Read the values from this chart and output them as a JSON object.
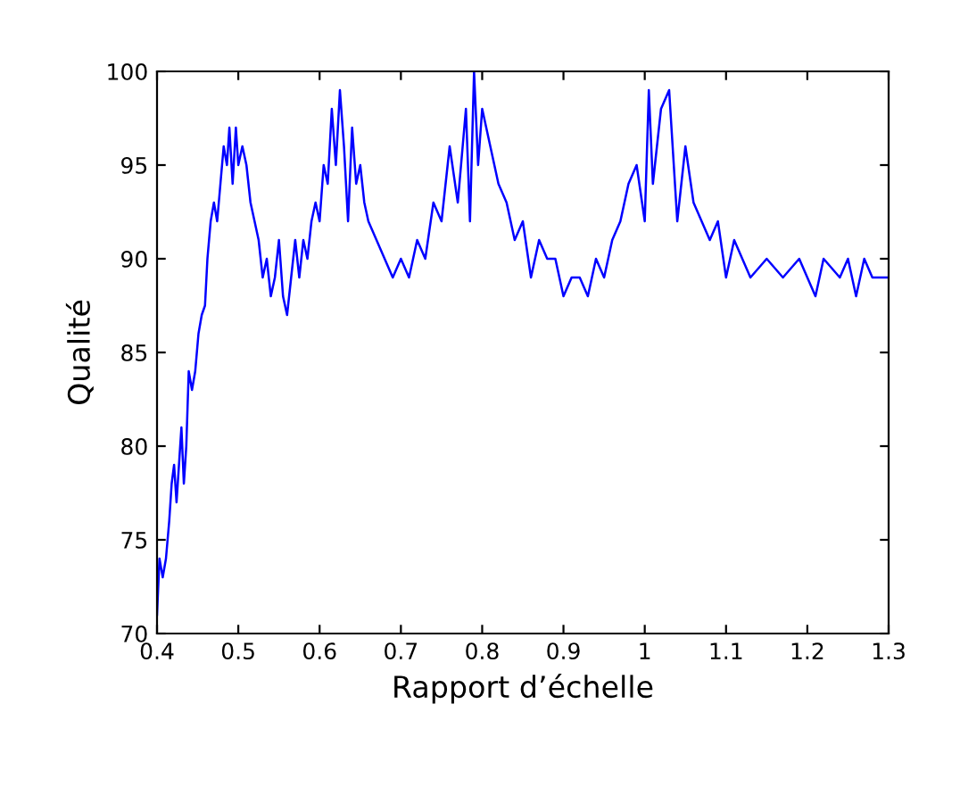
{
  "chart_data": {
    "type": "line",
    "xlabel": "Rapport d’échelle",
    "ylabel": "Qualité",
    "xlim": [
      0.4,
      1.3
    ],
    "xticks": [
      0.4,
      0.5,
      0.6,
      0.7,
      0.8,
      0.9,
      1,
      1.1,
      1.2,
      1.3
    ],
    "ylim": [
      70,
      100
    ],
    "yticks": [
      70,
      75,
      80,
      85,
      90,
      95,
      100
    ],
    "grid": false,
    "legend": false,
    "marker": "none",
    "line_style": "solid",
    "series": [
      {
        "color": "#0000ff",
        "x": [
          0.4,
          0.403,
          0.407,
          0.411,
          0.415,
          0.418,
          0.421,
          0.424,
          0.427,
          0.43,
          0.433,
          0.436,
          0.439,
          0.443,
          0.447,
          0.451,
          0.455,
          0.459,
          0.462,
          0.466,
          0.47,
          0.474,
          0.478,
          0.482,
          0.486,
          0.489,
          0.493,
          0.497,
          0.5,
          0.505,
          0.51,
          0.515,
          0.52,
          0.525,
          0.53,
          0.535,
          0.54,
          0.545,
          0.55,
          0.555,
          0.56,
          0.565,
          0.57,
          0.575,
          0.58,
          0.585,
          0.59,
          0.595,
          0.6,
          0.605,
          0.61,
          0.615,
          0.62,
          0.625,
          0.63,
          0.635,
          0.64,
          0.645,
          0.65,
          0.655,
          0.66,
          0.67,
          0.68,
          0.69,
          0.7,
          0.71,
          0.72,
          0.73,
          0.74,
          0.75,
          0.76,
          0.77,
          0.78,
          0.785,
          0.79,
          0.795,
          0.8,
          0.81,
          0.82,
          0.83,
          0.84,
          0.85,
          0.86,
          0.87,
          0.88,
          0.89,
          0.9,
          0.91,
          0.92,
          0.93,
          0.94,
          0.95,
          0.96,
          0.97,
          0.98,
          0.99,
          1.0,
          1.005,
          1.01,
          1.02,
          1.03,
          1.04,
          1.05,
          1.06,
          1.07,
          1.08,
          1.09,
          1.1,
          1.11,
          1.12,
          1.13,
          1.15,
          1.17,
          1.19,
          1.21,
          1.22,
          1.24,
          1.25,
          1.26,
          1.27,
          1.28,
          1.29,
          1.3
        ],
        "values": [
          71,
          74,
          73,
          74,
          76,
          78,
          79,
          77,
          79,
          81,
          78,
          80,
          84,
          83,
          84,
          86,
          87,
          87.5,
          90,
          92,
          93,
          92,
          94,
          96,
          95,
          97,
          94,
          97,
          95,
          96,
          95,
          93,
          92,
          91,
          89,
          90,
          88,
          89,
          91,
          88,
          87,
          89,
          91,
          89,
          91,
          90,
          92,
          93,
          92,
          95,
          94,
          98,
          95,
          99,
          96,
          92,
          97,
          94,
          95,
          93,
          92,
          91,
          90,
          89,
          90,
          89,
          91,
          90,
          93,
          92,
          96,
          93,
          98,
          92,
          100,
          95,
          98,
          96,
          94,
          93,
          91,
          92,
          89,
          91,
          90,
          90,
          88,
          89,
          89,
          88,
          90,
          89,
          91,
          92,
          94,
          95,
          92,
          99,
          94,
          98,
          99,
          92,
          96,
          93,
          92,
          91,
          92,
          89,
          91,
          90,
          89,
          90,
          89,
          90,
          88,
          90,
          89,
          90,
          88,
          90,
          89,
          89,
          89
        ]
      }
    ]
  }
}
